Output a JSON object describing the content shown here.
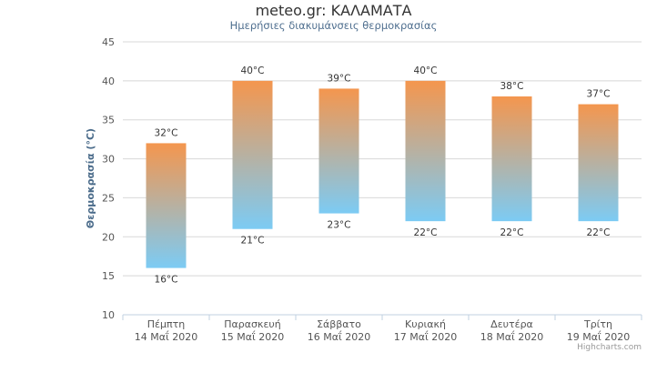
{
  "title": "meteo.gr: ΚΑΛΑΜΑΤΑ",
  "subtitle": "Ημερήσιες διακυμάνσεις θερμοκρασίας",
  "credits": "Highcharts.com",
  "colors": {
    "high": "#f4964e",
    "low": "#7ccbf4",
    "grid": "#d8d8d8",
    "axis_text": "#555555",
    "ylabel": "#4a6b8a"
  },
  "chart_data": {
    "type": "bar",
    "subtype": "columnrange",
    "ylabel": "Θερμοκρασία (°C)",
    "ylim": [
      10,
      45
    ],
    "yticks": [
      10,
      15,
      20,
      25,
      30,
      35,
      40,
      45
    ],
    "grid": true,
    "categories": [
      [
        "Πέμπτη",
        "14 Μαΐ 2020"
      ],
      [
        "Παρασκευή",
        "15 Μαΐ 2020"
      ],
      [
        "Σάββατο",
        "16 Μαΐ 2020"
      ],
      [
        "Κυριακή",
        "17 Μαΐ 2020"
      ],
      [
        "Δευτέρα",
        "18 Μαΐ 2020"
      ],
      [
        "Τρίτη",
        "19 Μαΐ 2020"
      ]
    ],
    "low": [
      16,
      21,
      23,
      22,
      22,
      22
    ],
    "high": [
      32,
      40,
      39,
      40,
      38,
      37
    ],
    "unit": "°C"
  }
}
